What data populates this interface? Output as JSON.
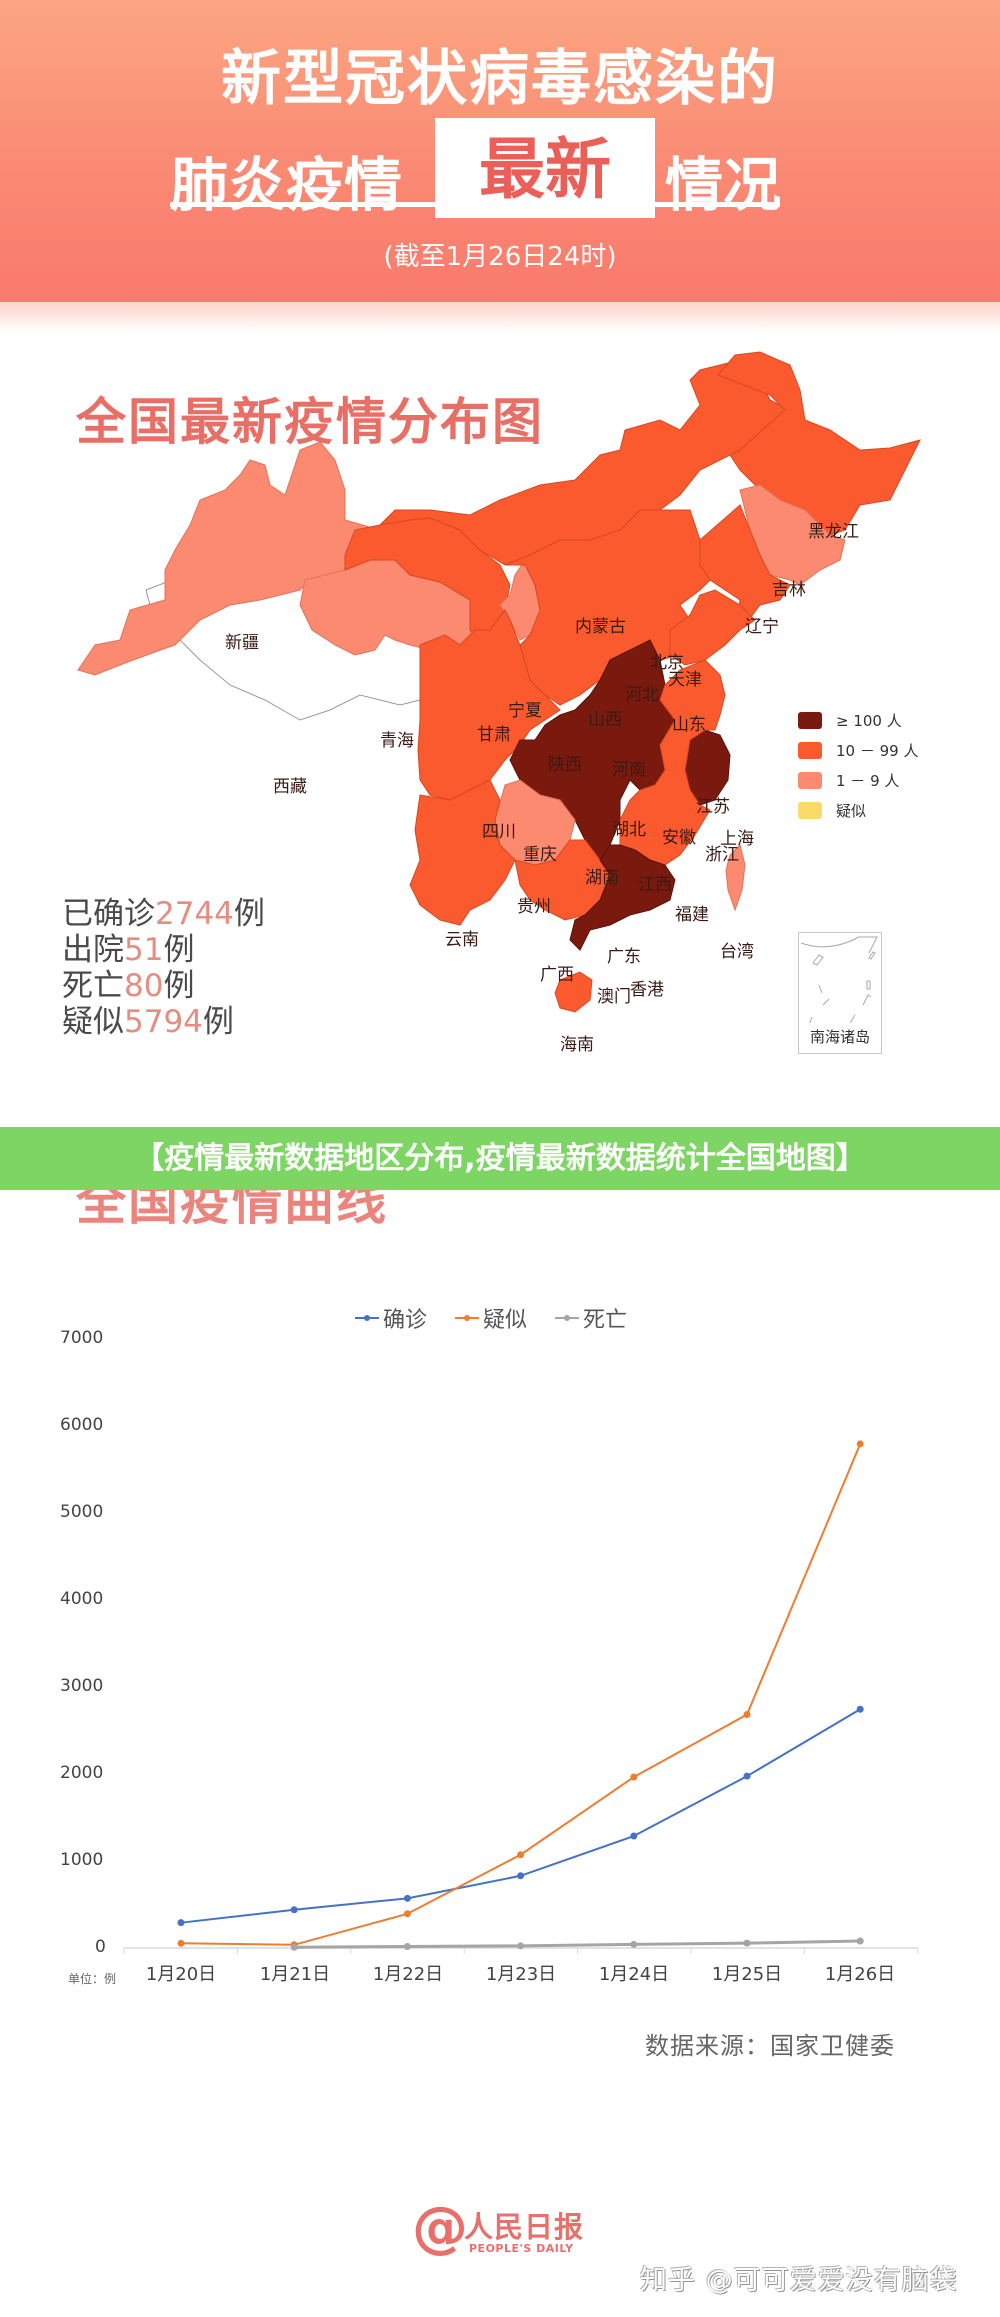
{
  "header": {
    "title_line1": "新型冠状病毒感染的",
    "title_line2_left": "肺炎疫情",
    "title_line2_highlight": "最新",
    "title_line2_right": "情况",
    "subtitle": "(截至1月26日24时)"
  },
  "map_section": {
    "title": "全国最新疫情分布图",
    "legend": [
      {
        "label": "≥ 100 人",
        "color": "#7a1a0e"
      },
      {
        "label": "10 － 99 人",
        "color": "#fb5a2f"
      },
      {
        "label": "1 － 9 人",
        "color": "#fb8a70"
      },
      {
        "label": "疑似",
        "color": "#fbd96a"
      }
    ],
    "provinces": {
      "xinjiang": "新疆",
      "xizang": "西藏",
      "qinghai": "青海",
      "gansu": "甘肃",
      "ningxia": "宁夏",
      "neimenggu": "内蒙古",
      "heilongjiang": "黑龙江",
      "jilin": "吉林",
      "liaoning": "辽宁",
      "beijing": "北京",
      "tianjin": "天津",
      "hebei": "河北",
      "shanxi": "山西",
      "shandong": "山东",
      "shaanxi": "陕西",
      "henan": "河南",
      "jiangsu": "江苏",
      "anhui": "安徽",
      "shanghai": "上海",
      "sichuan": "四川",
      "chongqing": "重庆",
      "hubei": "湖北",
      "zhejiang": "浙江",
      "hunan": "湖南",
      "jiangxi": "江西",
      "guizhou": "贵州",
      "yunnan": "云南",
      "guangxi": "广西",
      "guangdong": "广东",
      "fujian": "福建",
      "taiwan": "台湾",
      "hongkong": "香港",
      "macau": "澳门",
      "hainan": "海南"
    },
    "nanhai_label": "南海诸岛",
    "stats": {
      "confirmed_prefix": "已确诊",
      "confirmed_value": "2744",
      "confirmed_suffix": "例",
      "recovered_prefix": "出院",
      "recovered_value": "51",
      "recovered_suffix": "例",
      "deaths_prefix": "死亡",
      "deaths_value": "80",
      "deaths_suffix": "例",
      "suspected_prefix": "疑似",
      "suspected_value": "5794",
      "suspected_suffix": "例"
    }
  },
  "banner": {
    "text": "【疫情最新数据地区分布,疫情最新数据统计全国地图】",
    "color": "#7dd663"
  },
  "chart_section": {
    "title": "全国疫情曲线",
    "unit_label": "单位：例",
    "source": "数据来源：国家卫健委"
  },
  "chart_data": {
    "type": "line",
    "title": "全国疫情曲线",
    "categories": [
      "1月20日",
      "1月21日",
      "1月22日",
      "1月23日",
      "1月24日",
      "1月25日",
      "1月26日"
    ],
    "series": [
      {
        "name": "确诊",
        "color": "#4472c4",
        "values": [
          291,
          440,
          571,
          830,
          1287,
          1975,
          2744
        ]
      },
      {
        "name": "疑似",
        "color": "#ed7d31",
        "values": [
          54,
          37,
          393,
          1072,
          1965,
          2684,
          5794
        ]
      },
      {
        "name": "死亡",
        "color": "#a5a5a5",
        "values": [
          null,
          9,
          17,
          25,
          41,
          56,
          80
        ]
      }
    ],
    "xlabel": "",
    "ylabel": "单位：例",
    "ylim": [
      0,
      7000
    ],
    "yticks": [
      0,
      1000,
      2000,
      3000,
      4000,
      5000,
      6000,
      7000
    ],
    "grid": false,
    "legend_position": "top"
  },
  "footer": {
    "logo_at": "@",
    "logo_cn": "人民日报",
    "logo_en": "PEOPLE'S DAILY",
    "watermark": "知乎 @可可爱爱没有脑袋"
  }
}
